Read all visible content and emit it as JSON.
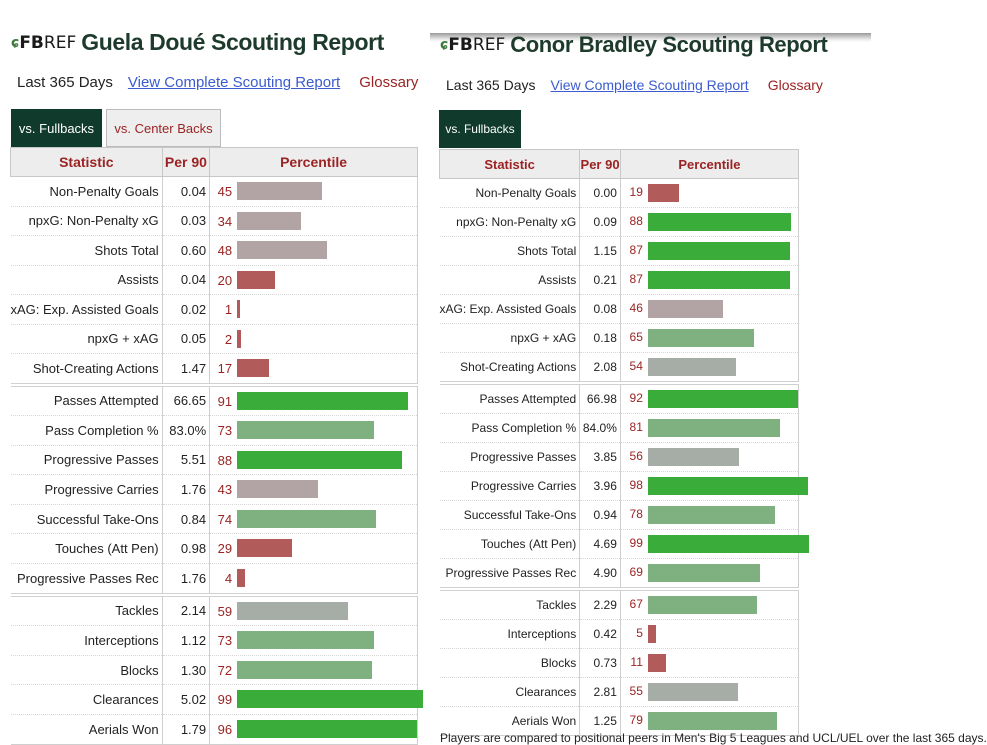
{
  "left": {
    "logo_mark": "ɕ",
    "logo_fb": "FB",
    "logo_ref": "REF",
    "title": "Guela Doué Scouting Report",
    "period": "Last 365 Days",
    "view_link": "View Complete Scouting Report",
    "glossary": "Glossary",
    "tabs": [
      "vs. Fullbacks",
      "vs. Center Backs"
    ],
    "columns": [
      "Statistic",
      "Per 90",
      "Percentile"
    ],
    "groups": [
      [
        {
          "stat": "Non-Penalty Goals",
          "per90": "0.04",
          "pct": 45
        },
        {
          "stat": "npxG: Non-Penalty xG",
          "per90": "0.03",
          "pct": 34
        },
        {
          "stat": "Shots Total",
          "per90": "0.60",
          "pct": 48
        },
        {
          "stat": "Assists",
          "per90": "0.04",
          "pct": 20
        },
        {
          "stat": "xAG: Exp. Assisted Goals",
          "per90": "0.02",
          "pct": 1
        },
        {
          "stat": "npxG + xAG",
          "per90": "0.05",
          "pct": 2
        },
        {
          "stat": "Shot-Creating Actions",
          "per90": "1.47",
          "pct": 17
        }
      ],
      [
        {
          "stat": "Passes Attempted",
          "per90": "66.65",
          "pct": 91
        },
        {
          "stat": "Pass Completion %",
          "per90": "83.0%",
          "pct": 73
        },
        {
          "stat": "Progressive Passes",
          "per90": "5.51",
          "pct": 88
        },
        {
          "stat": "Progressive Carries",
          "per90": "1.76",
          "pct": 43
        },
        {
          "stat": "Successful Take-Ons",
          "per90": "0.84",
          "pct": 74
        },
        {
          "stat": "Touches (Att Pen)",
          "per90": "0.98",
          "pct": 29
        },
        {
          "stat": "Progressive Passes Rec",
          "per90": "1.76",
          "pct": 4
        }
      ],
      [
        {
          "stat": "Tackles",
          "per90": "2.14",
          "pct": 59
        },
        {
          "stat": "Interceptions",
          "per90": "1.12",
          "pct": 73
        },
        {
          "stat": "Blocks",
          "per90": "1.30",
          "pct": 72
        },
        {
          "stat": "Clearances",
          "per90": "5.02",
          "pct": 99
        },
        {
          "stat": "Aerials Won",
          "per90": "1.79",
          "pct": 96
        }
      ]
    ]
  },
  "right": {
    "logo_mark": "ɕ",
    "logo_fb": "FB",
    "logo_ref": "REF",
    "title": "Conor Bradley Scouting Report",
    "period": "Last 365 Days",
    "view_link": "View Complete Scouting Report",
    "glossary": "Glossary",
    "tabs": [
      "vs. Fullbacks"
    ],
    "columns": [
      "Statistic",
      "Per 90",
      "Percentile"
    ],
    "groups": [
      [
        {
          "stat": "Non-Penalty Goals",
          "per90": "0.00",
          "pct": 19
        },
        {
          "stat": "npxG: Non-Penalty xG",
          "per90": "0.09",
          "pct": 88
        },
        {
          "stat": "Shots Total",
          "per90": "1.15",
          "pct": 87
        },
        {
          "stat": "Assists",
          "per90": "0.21",
          "pct": 87
        },
        {
          "stat": "xAG: Exp. Assisted Goals",
          "per90": "0.08",
          "pct": 46
        },
        {
          "stat": "npxG + xAG",
          "per90": "0.18",
          "pct": 65
        },
        {
          "stat": "Shot-Creating Actions",
          "per90": "2.08",
          "pct": 54
        }
      ],
      [
        {
          "stat": "Passes Attempted",
          "per90": "66.98",
          "pct": 92
        },
        {
          "stat": "Pass Completion %",
          "per90": "84.0%",
          "pct": 81
        },
        {
          "stat": "Progressive Passes",
          "per90": "3.85",
          "pct": 56
        },
        {
          "stat": "Progressive Carries",
          "per90": "3.96",
          "pct": 98
        },
        {
          "stat": "Successful Take-Ons",
          "per90": "0.94",
          "pct": 78
        },
        {
          "stat": "Touches (Att Pen)",
          "per90": "4.69",
          "pct": 99
        },
        {
          "stat": "Progressive Passes Rec",
          "per90": "4.90",
          "pct": 69
        }
      ],
      [
        {
          "stat": "Tackles",
          "per90": "2.29",
          "pct": 67
        },
        {
          "stat": "Interceptions",
          "per90": "0.42",
          "pct": 5
        },
        {
          "stat": "Blocks",
          "per90": "0.73",
          "pct": 11
        },
        {
          "stat": "Clearances",
          "per90": "2.81",
          "pct": 55
        },
        {
          "stat": "Aerials Won",
          "per90": "1.25",
          "pct": 79
        }
      ]
    ]
  },
  "colors": {
    "brand_green": "#103b2c",
    "header_red": "#9b2323",
    "link_blue": "#3b5bcf",
    "bar_red": "#b25b5b",
    "bar_grey": "#b2a4a4",
    "bar_green": "#3aac3a"
  },
  "footer_text": "Players are compared to positional peers in Men's Big 5 Leagues and UCL/UEL over the last 365 days."
}
